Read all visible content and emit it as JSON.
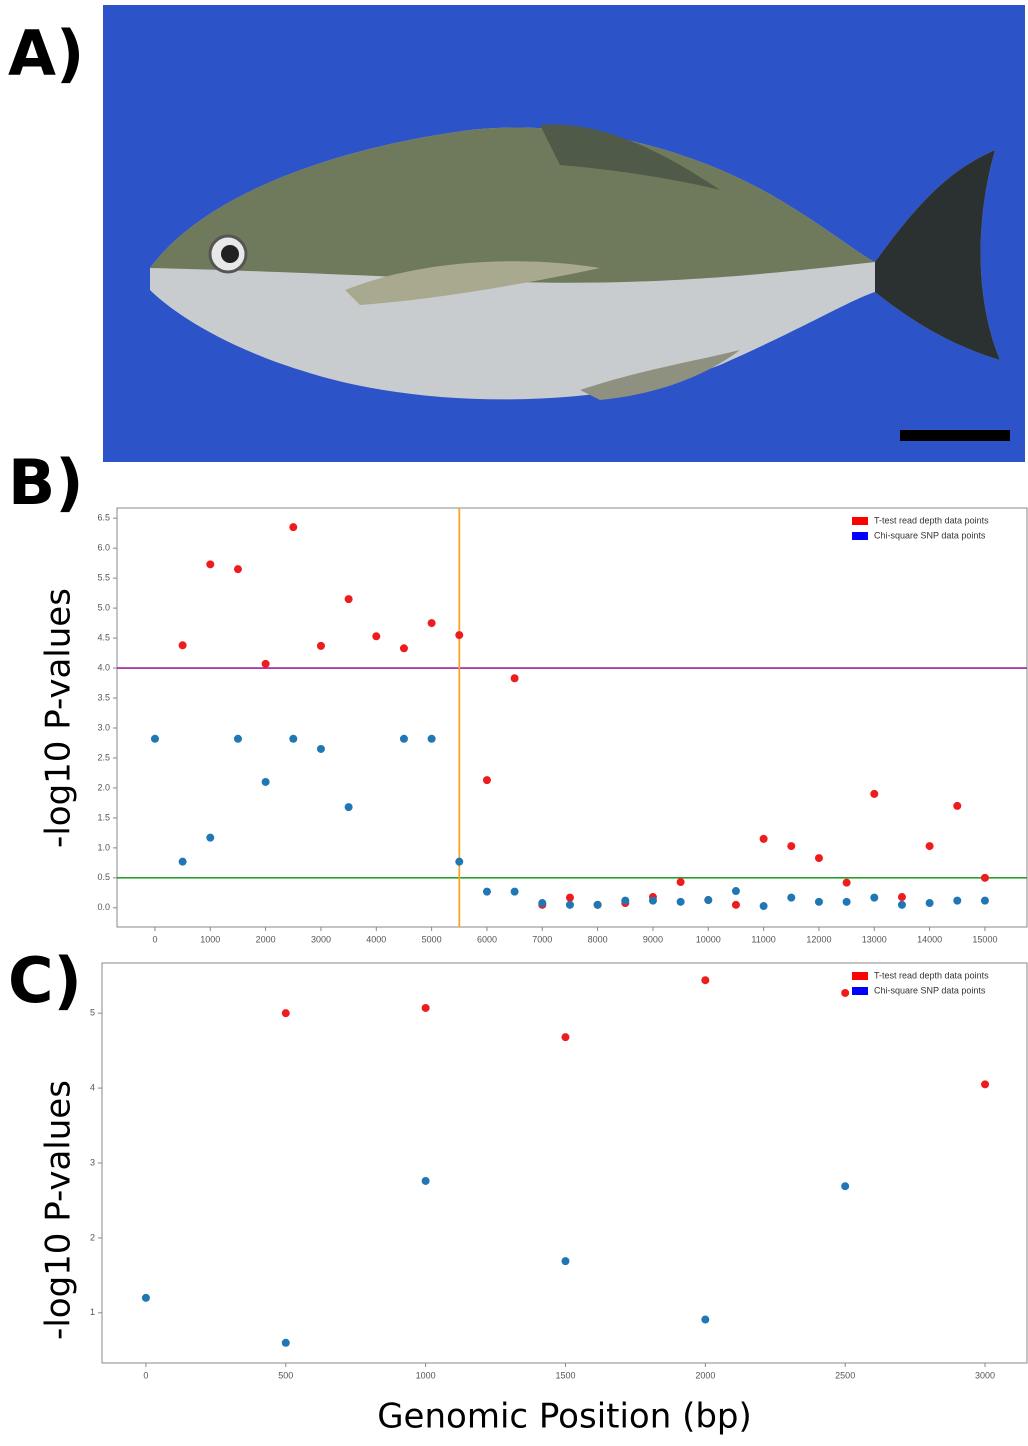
{
  "panel_labels": [
    "A)",
    "B)",
    "C)"
  ],
  "chart_data": [
    {
      "type": "scatter",
      "ylabel": "-log10 P-values",
      "x": [
        0,
        500,
        1000,
        1500,
        2000,
        2500,
        3000,
        3500,
        4000,
        4500,
        5000,
        5500,
        6000,
        6500,
        7000,
        7500,
        8000,
        8500,
        9000,
        9500,
        10000,
        10500,
        11000,
        11500,
        12000,
        12500,
        13000,
        13500,
        14000,
        14500,
        15000
      ],
      "series": [
        {
          "name": "T-test read depth data points",
          "color": "#ee1c1c",
          "legend_color": "#ff0000",
          "values": [
            null,
            4.38,
            5.73,
            5.65,
            4.07,
            6.35,
            4.37,
            5.15,
            4.53,
            4.33,
            4.75,
            4.55,
            2.13,
            3.83,
            0.05,
            0.17,
            0.05,
            0.08,
            0.18,
            0.43,
            0.13,
            0.05,
            1.15,
            1.03,
            0.83,
            0.42,
            1.9,
            0.18,
            1.03,
            1.7,
            0.5
          ]
        },
        {
          "name": "Chi-square SNP data points",
          "color": "#1f77b4",
          "legend_color": "#0000ff",
          "values": [
            2.82,
            0.77,
            1.17,
            2.82,
            2.1,
            2.82,
            2.65,
            1.68,
            null,
            2.82,
            2.82,
            0.77,
            0.27,
            0.27,
            0.08,
            0.05,
            0.05,
            0.12,
            0.12,
            0.1,
            0.13,
            0.28,
            0.03,
            0.17,
            0.1,
            0.1,
            0.17,
            0.05,
            0.08,
            0.12,
            0.12
          ]
        }
      ],
      "hlines": [
        {
          "value": 4,
          "color": "#a020a0"
        },
        {
          "value": 0.5,
          "color": "#2ca02c"
        }
      ],
      "vlines": [
        {
          "value": 5500,
          "color": "#f5a623"
        }
      ],
      "xlim": [
        -686,
        15760
      ],
      "ylim": [
        -0.32,
        6.67
      ],
      "xticks": [
        0,
        1000,
        2000,
        3000,
        4000,
        5000,
        6000,
        7000,
        8000,
        9000,
        10000,
        11000,
        12000,
        13000,
        14000,
        15000
      ],
      "yticks": [
        {
          "value": 0,
          "label": "0.0"
        },
        {
          "value": 0.5,
          "label": "0.5"
        },
        {
          "value": 1,
          "label": "1.0"
        },
        {
          "value": 1.5,
          "label": "1.5"
        },
        {
          "value": 2,
          "label": "2.0"
        },
        {
          "value": 2.5,
          "label": "2.5"
        },
        {
          "value": 3,
          "label": "3.0"
        },
        {
          "value": 3.5,
          "label": "3.5"
        },
        {
          "value": 4,
          "label": "4.0"
        },
        {
          "value": 4.5,
          "label": "4.5"
        },
        {
          "value": 5,
          "label": "5.0"
        },
        {
          "value": 5.5,
          "label": "5.5"
        },
        {
          "value": 6,
          "label": "6.0"
        },
        {
          "value": 6.5,
          "label": "6.5"
        }
      ],
      "legend": "upper right"
    },
    {
      "type": "scatter",
      "ylabel": "-log10 P-values",
      "xlabel": "Genomic Position (bp)",
      "x": [
        0,
        500,
        1000,
        1500,
        2000,
        2500,
        3000
      ],
      "series": [
        {
          "name": "T-test read depth data points",
          "color": "#ee1c1c",
          "legend_color": "#ff0000",
          "values": [
            null,
            5.0,
            5.07,
            4.68,
            5.44,
            5.27,
            4.05
          ]
        },
        {
          "name": "Chi-square SNP data points",
          "color": "#1f77b4",
          "legend_color": "#0000ff",
          "values": [
            1.2,
            0.6,
            2.76,
            1.69,
            0.91,
            2.69,
            null
          ]
        }
      ],
      "xlim": [
        -157,
        3150
      ],
      "ylim": [
        0.33,
        5.67
      ],
      "xticks": [
        0,
        500,
        1000,
        1500,
        2000,
        2500,
        3000
      ],
      "yticks": [
        1,
        2,
        3,
        4,
        5
      ],
      "legend": "upper right"
    }
  ]
}
